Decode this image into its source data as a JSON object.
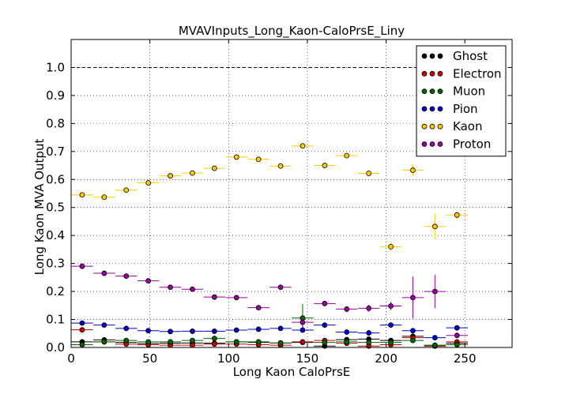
{
  "chart_data": {
    "type": "scatter",
    "title": "MVAVInputs_Long_Kaon-CaloPrsE_Liny",
    "xlabel": "Long Kaon CaloPrsE",
    "ylabel": "Long Kaon MVA Output",
    "xlim": [
      0,
      280
    ],
    "ylim": [
      0,
      1.1
    ],
    "grid": true,
    "legend_position": "top-right",
    "reference_line": 1.0,
    "x_bin_half_width": 6.9,
    "x_ticks": [
      0,
      50,
      100,
      150,
      200,
      250
    ],
    "x_tick_labels": [
      "0",
      "50",
      "100",
      "150",
      "200",
      "250"
    ],
    "y_ticks": [
      0.0,
      0.1,
      0.2,
      0.3,
      0.4,
      0.5,
      0.6,
      0.7,
      0.8,
      0.9,
      1.0
    ],
    "y_tick_labels": [
      "0.0",
      "0.1",
      "0.2",
      "0.3",
      "0.4",
      "0.5",
      "0.6",
      "0.7",
      "0.8",
      "0.9",
      "1.0"
    ],
    "series": [
      {
        "name": "Ghost",
        "color": "#000000",
        "x": [
          7,
          21,
          35,
          49,
          63,
          77,
          91,
          105,
          119,
          133,
          147,
          161,
          175,
          189,
          203,
          217,
          231,
          245
        ],
        "y": [
          0.02,
          0.027,
          0.018,
          0.014,
          0.015,
          0.016,
          0.015,
          0.02,
          0.018,
          0.016,
          0.018,
          0.005,
          0.028,
          0.03,
          0.025,
          0.04,
          0.005,
          0.015
        ],
        "yerr": [
          0.003,
          0.003,
          0.003,
          0.003,
          0.003,
          0.003,
          0.003,
          0.003,
          0.003,
          0.003,
          0.004,
          0.003,
          0.004,
          0.005,
          0.006,
          0.008,
          0.003,
          0.005
        ]
      },
      {
        "name": "Electron",
        "color": "#cc0000",
        "x": [
          7,
          21,
          35,
          49,
          63,
          77,
          91,
          105,
          119,
          133,
          147,
          161,
          175,
          189,
          203,
          217,
          231,
          245
        ],
        "y": [
          0.063,
          0.02,
          0.012,
          0.01,
          0.008,
          0.008,
          0.012,
          0.012,
          0.01,
          0.008,
          0.02,
          0.025,
          0.015,
          0.005,
          0.01,
          0.035,
          0.005,
          0.02
        ],
        "yerr": [
          0.005,
          0.003,
          0.003,
          0.003,
          0.003,
          0.003,
          0.003,
          0.003,
          0.003,
          0.003,
          0.004,
          0.004,
          0.004,
          0.003,
          0.004,
          0.007,
          0.003,
          0.005
        ]
      },
      {
        "name": "Muon",
        "color": "#006600",
        "x": [
          7,
          21,
          35,
          49,
          63,
          77,
          91,
          105,
          119,
          133,
          147,
          161,
          175,
          189,
          203,
          217,
          231,
          245
        ],
        "y": [
          0.01,
          0.02,
          0.025,
          0.02,
          0.02,
          0.025,
          0.032,
          0.02,
          0.02,
          0.016,
          0.105,
          0.018,
          0.02,
          0.018,
          0.018,
          0.025,
          0.008,
          0.01
        ],
        "yerr": [
          0.003,
          0.003,
          0.003,
          0.003,
          0.003,
          0.003,
          0.004,
          0.003,
          0.003,
          0.003,
          0.05,
          0.004,
          0.004,
          0.004,
          0.005,
          0.006,
          0.003,
          0.004
        ]
      },
      {
        "name": "Pion",
        "color": "#0000cc",
        "x": [
          7,
          21,
          35,
          49,
          63,
          77,
          91,
          105,
          119,
          133,
          147,
          161,
          175,
          189,
          203,
          217,
          231,
          245
        ],
        "y": [
          0.087,
          0.08,
          0.068,
          0.06,
          0.057,
          0.058,
          0.058,
          0.062,
          0.065,
          0.068,
          0.062,
          0.08,
          0.055,
          0.052,
          0.08,
          0.06,
          0.035,
          0.07
        ],
        "yerr": [
          0.004,
          0.003,
          0.003,
          0.003,
          0.003,
          0.003,
          0.003,
          0.003,
          0.003,
          0.003,
          0.005,
          0.005,
          0.005,
          0.005,
          0.006,
          0.007,
          0.005,
          0.006
        ]
      },
      {
        "name": "Kaon",
        "color": "#ffcc00",
        "x": [
          7,
          21,
          35,
          49,
          63,
          77,
          91,
          105,
          119,
          133,
          147,
          161,
          175,
          189,
          203,
          217,
          231,
          245
        ],
        "y": [
          0.545,
          0.537,
          0.562,
          0.588,
          0.613,
          0.623,
          0.64,
          0.68,
          0.672,
          0.648,
          0.72,
          0.65,
          0.685,
          0.622,
          0.36,
          0.633,
          0.432,
          0.473
        ],
        "yerr": [
          0.005,
          0.004,
          0.004,
          0.004,
          0.004,
          0.004,
          0.004,
          0.005,
          0.005,
          0.005,
          0.006,
          0.008,
          0.01,
          0.012,
          0.015,
          0.02,
          0.045,
          0.015
        ]
      },
      {
        "name": "Proton",
        "color": "#990099",
        "x": [
          7,
          21,
          35,
          49,
          63,
          77,
          91,
          105,
          119,
          133,
          147,
          161,
          175,
          189,
          203,
          217,
          231,
          245
        ],
        "y": [
          0.29,
          0.265,
          0.255,
          0.238,
          0.215,
          0.208,
          0.18,
          0.178,
          0.142,
          0.215,
          0.09,
          0.157,
          0.137,
          0.14,
          0.148,
          0.178,
          0.2,
          0.043
        ],
        "yerr": [
          0.004,
          0.004,
          0.004,
          0.004,
          0.004,
          0.004,
          0.005,
          0.005,
          0.005,
          0.006,
          0.015,
          0.008,
          0.01,
          0.012,
          0.015,
          0.075,
          0.06,
          0.01
        ]
      }
    ]
  }
}
